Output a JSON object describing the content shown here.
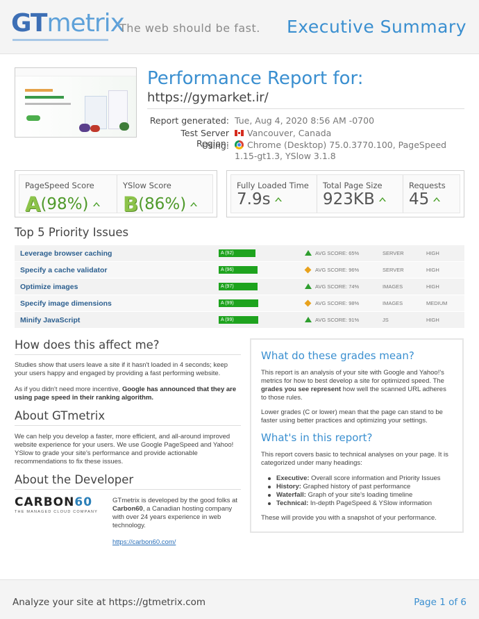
{
  "header": {
    "logo_gt": "GT",
    "logo_metrix": "metrix",
    "tagline": "The web should be fast.",
    "title": "Executive Summary"
  },
  "report": {
    "heading": "Performance Report for:",
    "url": "https://gymarket.ir/",
    "generated_label": "Report generated:",
    "generated_value": "Tue, Aug 4, 2020 8:56 AM -0700",
    "region_label": "Test Server Region:",
    "region_value": "Vancouver, Canada",
    "using_label": "Using:",
    "using_value": "Chrome (Desktop) 75.0.3770.100, PageSpeed 1.15-gt1.3, YSlow 3.1.8"
  },
  "scores": {
    "pagespeed_label": "PageSpeed Score",
    "pagespeed_grade": "A",
    "pagespeed_value": "(98%)",
    "yslow_label": "YSlow Score",
    "yslow_grade": "B",
    "yslow_value": "(86%)",
    "loaded_label": "Fully Loaded Time",
    "loaded_value": "7.9s",
    "size_label": "Total Page Size",
    "size_value": "923KB",
    "requests_label": "Requests",
    "requests_value": "45"
  },
  "priority": {
    "heading": "Top 5 Priority Issues",
    "issues": [
      {
        "name": "Leverage browser caching",
        "grade": "A (92)",
        "fill": 0.92,
        "mark": "up",
        "avg": "AVG SCORE: 65%",
        "type": "SERVER",
        "priority": "HIGH"
      },
      {
        "name": "Specify a cache validator",
        "grade": "A (96)",
        "fill": 0.96,
        "mark": "diamond",
        "avg": "AVG SCORE: 96%",
        "type": "SERVER",
        "priority": "HIGH"
      },
      {
        "name": "Optimize images",
        "grade": "A (97)",
        "fill": 0.97,
        "mark": "up",
        "avg": "AVG SCORE: 74%",
        "type": "IMAGES",
        "priority": "HIGH"
      },
      {
        "name": "Specify image dimensions",
        "grade": "A (99)",
        "fill": 0.99,
        "mark": "diamond",
        "avg": "AVG SCORE: 98%",
        "type": "IMAGES",
        "priority": "MEDIUM"
      },
      {
        "name": "Minify JavaScript",
        "grade": "A (99)",
        "fill": 0.99,
        "mark": "up",
        "avg": "AVG SCORE: 91%",
        "type": "JS",
        "priority": "HIGH"
      }
    ]
  },
  "affect": {
    "heading": "How does this affect me?",
    "p1": "Studies show that users leave a site if it hasn't loaded in 4 seconds; keep your users happy and engaged by providing a fast performing website.",
    "p2_start": "As if you didn't need more incentive, ",
    "p2_bold": "Google has announced that they are using page speed in their ranking algorithm."
  },
  "about": {
    "heading": "About GTmetrix",
    "p1": "We can help you develop a faster, more efficient, and all-around improved website experience for your users. We use Google PageSpeed and Yahoo! YSlow to grade your site's performance and provide actionable recommendations to fix these issues."
  },
  "developer": {
    "heading": "About the Developer",
    "logo_word": "CARBON",
    "logo_num": "60",
    "logo_tag": "THE MANAGED CLOUD COMPANY",
    "text_start": "GTmetrix is developed by the good folks at ",
    "text_bold": "Carbon60",
    "text_end": ", a Canadian hosting company with over 24 years experience in web technology.",
    "link": "https://carbon60.com/"
  },
  "grades": {
    "heading": "What do these grades mean?",
    "p1_start": "This report is an analysis of your site with Google and Yahoo!'s metrics for how to best develop a site for optimized speed. The ",
    "p1_bold": "grades you see represent",
    "p1_end": " how well the scanned URL adheres to those rules.",
    "p2": "Lower grades (C or lower) mean that the page can stand to be faster using better practices and optimizing your settings."
  },
  "whats_in": {
    "heading": "What's in this report?",
    "p1": "This report covers basic to technical analyses on your page. It is categorized under many headings:",
    "items": [
      {
        "label": "Executive:",
        "text": " Overall score information and Priority Issues"
      },
      {
        "label": "History:",
        "text": " Graphed history of past performance"
      },
      {
        "label": "Waterfall:",
        "text": " Graph of your site's loading timeline"
      },
      {
        "label": "Technical:",
        "text": " In-depth PageSpeed & YSlow information"
      }
    ],
    "p2": "These will provide you with a snapshot of your performance."
  },
  "footer": {
    "left": "Analyze your site at https://gtmetrix.com",
    "right": "Page 1 of 6"
  },
  "colors": {
    "accent": "#3a8fd0",
    "grade_green": "#1ea31e",
    "warn": "#e8a21d"
  }
}
